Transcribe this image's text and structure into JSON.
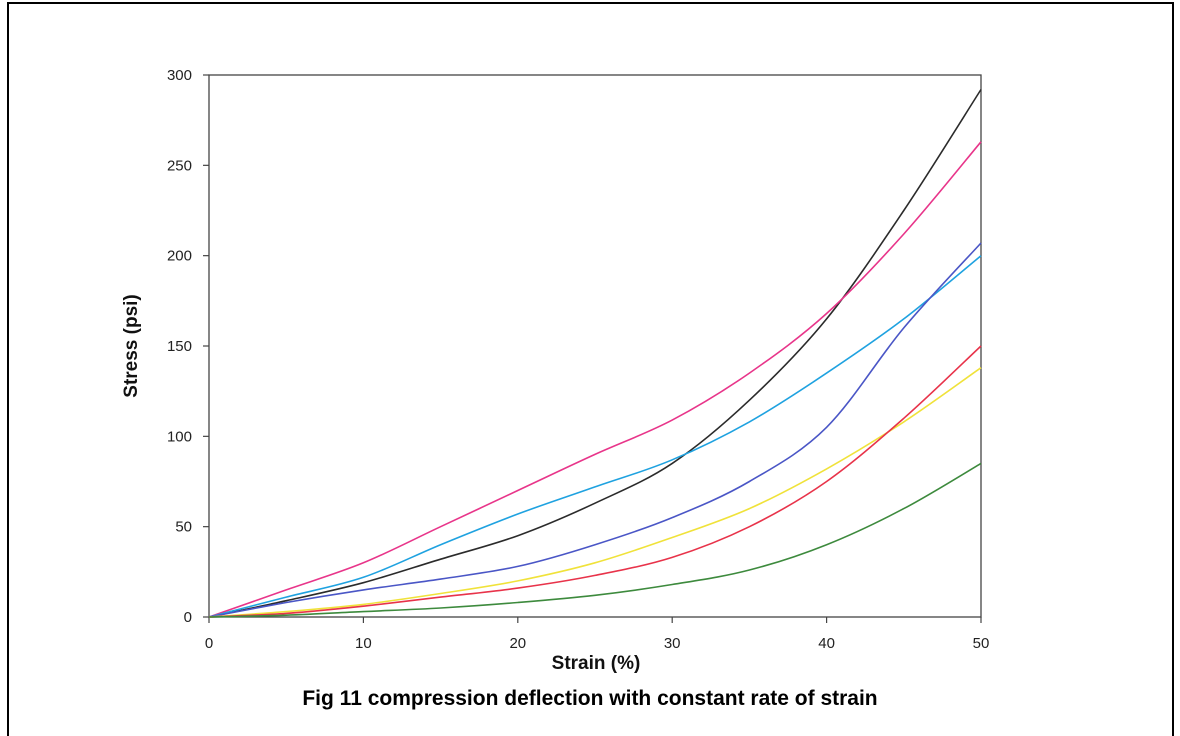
{
  "caption": "Fig 11 compression deflection with constant rate of strain",
  "chart_data": {
    "type": "line",
    "title": "",
    "xlabel": "Strain (%)",
    "ylabel": "Stress (psi)",
    "xlim": [
      0,
      50
    ],
    "ylim": [
      0,
      300
    ],
    "xticks": [
      0,
      10,
      20,
      30,
      40,
      50
    ],
    "yticks": [
      0,
      50,
      100,
      150,
      200,
      250,
      300
    ],
    "grid": false,
    "legend": "none",
    "x": [
      0,
      5,
      10,
      15,
      20,
      25,
      30,
      35,
      40,
      45,
      50
    ],
    "series": [
      {
        "color": "#2b2b2b",
        "values": [
          0,
          9,
          19,
          32,
          45,
          63,
          85,
          120,
          165,
          225,
          292
        ]
      },
      {
        "color": "#e8358a",
        "values": [
          0,
          15,
          30,
          50,
          70,
          90,
          109,
          135,
          168,
          212,
          263
        ]
      },
      {
        "color": "#1fa2e0",
        "values": [
          0,
          11,
          22,
          40,
          57,
          72,
          87,
          108,
          135,
          165,
          200
        ]
      },
      {
        "color": "#4a56c6",
        "values": [
          0,
          8,
          15,
          21,
          28,
          40,
          55,
          75,
          105,
          160,
          207
        ]
      },
      {
        "color": "#f0e23a",
        "values": [
          0,
          3,
          7,
          13,
          20,
          30,
          44,
          60,
          82,
          108,
          138
        ]
      },
      {
        "color": "#e8334a",
        "values": [
          0,
          2,
          6,
          11,
          16,
          23,
          33,
          50,
          75,
          110,
          150
        ]
      },
      {
        "color": "#3d8a3d",
        "values": [
          0,
          1,
          3,
          5,
          8,
          12,
          18,
          26,
          40,
          60,
          85
        ]
      }
    ]
  }
}
